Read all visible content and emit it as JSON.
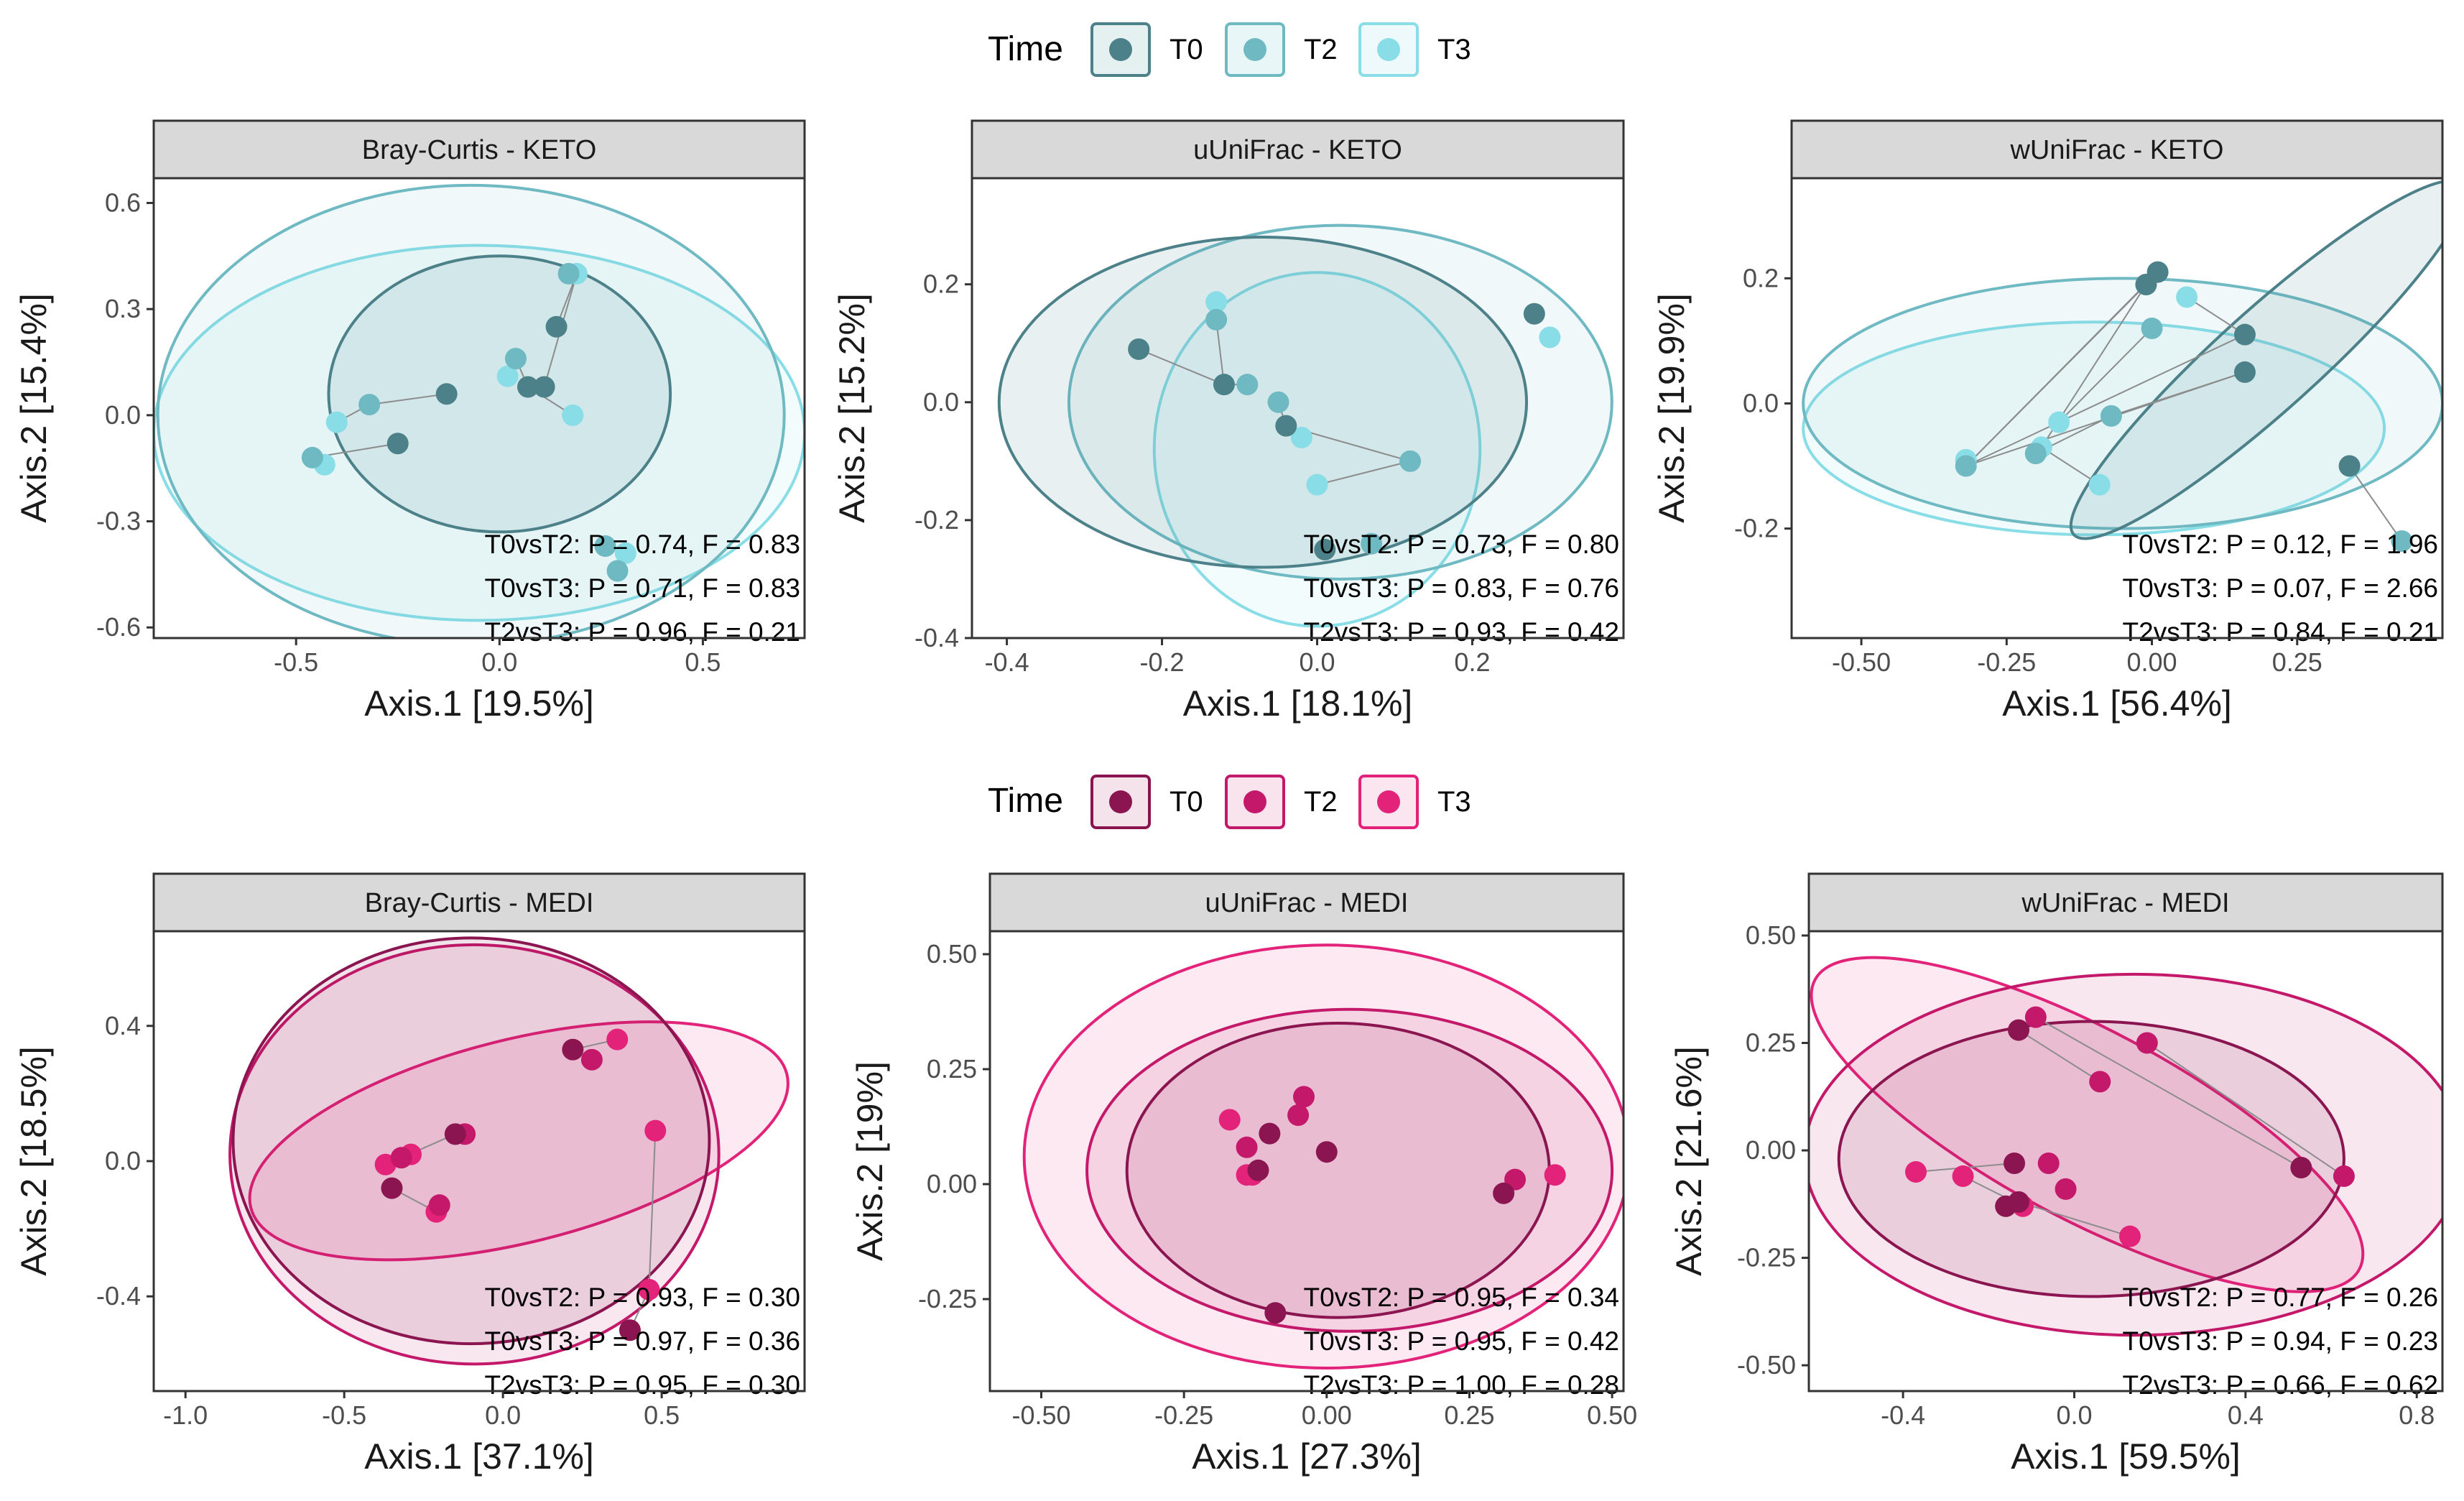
{
  "legends": [
    {
      "title": "Time",
      "items": [
        {
          "label": "T0",
          "color": "#4d8189"
        },
        {
          "label": "T2",
          "color": "#6fb9c3"
        },
        {
          "label": "T3",
          "color": "#88dde6"
        }
      ]
    },
    {
      "title": "Time",
      "items": [
        {
          "label": "T0",
          "color": "#8a1550"
        },
        {
          "label": "T2",
          "color": "#c4186a"
        },
        {
          "label": "T3",
          "color": "#e3237a"
        }
      ]
    }
  ],
  "chart_data": [
    {
      "type": "scatter",
      "title": "Bray-Curtis - KETO",
      "group": "KETO",
      "xlabel": "Axis.1   [19.5%]",
      "ylabel": "Axis.2   [15.4%]",
      "xlim": [
        -0.85,
        0.75
      ],
      "ylim": [
        -0.63,
        0.67
      ],
      "xticks": [
        -0.5,
        0.0,
        0.5
      ],
      "xtick_labels": [
        "-0.5",
        "0.0",
        "0.5"
      ],
      "yticks": [
        -0.6,
        -0.3,
        0.0,
        0.3,
        0.6
      ],
      "ytick_labels": [
        "-0.6",
        "-0.3",
        "0.0",
        "0.3",
        "0.6"
      ],
      "annotations": [
        "T0vsT2: P = 0.74, F = 0.83",
        "T0vsT3: P = 0.71, F = 0.83",
        "T2vsT3: P = 0.96, F = 0.21"
      ],
      "series": [
        {
          "name": "T0",
          "x": [
            -0.13,
            -0.25,
            0.14,
            0.07,
            0.11
          ],
          "y": [
            0.06,
            -0.08,
            0.25,
            0.08,
            0.08
          ]
        },
        {
          "name": "T2",
          "x": [
            -0.32,
            -0.46,
            0.04,
            0.17,
            0.26,
            0.29
          ],
          "y": [
            0.03,
            -0.12,
            0.16,
            0.4,
            -0.37,
            -0.44
          ]
        },
        {
          "name": "T3",
          "x": [
            -0.4,
            -0.43,
            0.02,
            0.18,
            0.19,
            0.31
          ],
          "y": [
            -0.02,
            -0.14,
            0.11,
            0.0,
            0.4,
            -0.39
          ]
        }
      ],
      "ellipses": [
        {
          "name": "T0",
          "cx": 0.0,
          "cy": 0.06,
          "rx": 0.42,
          "ry": 0.39
        },
        {
          "name": "T2",
          "cx": -0.07,
          "cy": 0.0,
          "rx": 0.77,
          "ry": 0.65
        },
        {
          "name": "T3",
          "cx": -0.05,
          "cy": -0.05,
          "rx": 0.8,
          "ry": 0.53
        }
      ],
      "links": [
        [
          -0.4,
          -0.02,
          -0.32,
          0.03
        ],
        [
          -0.32,
          0.03,
          -0.13,
          0.06
        ],
        [
          -0.46,
          -0.12,
          -0.25,
          -0.08
        ],
        [
          0.04,
          0.16,
          0.07,
          0.08
        ],
        [
          0.07,
          0.08,
          0.18,
          0.0
        ],
        [
          0.11,
          0.08,
          0.19,
          0.4
        ],
        [
          0.14,
          0.25,
          0.19,
          0.4
        ],
        [
          0.26,
          -0.37,
          0.31,
          -0.39
        ]
      ]
    },
    {
      "type": "scatter",
      "title": "uUniFrac - KETO",
      "group": "KETO",
      "xlabel": "Axis.1   [18.1%]",
      "ylabel": "Axis.2   [15.2%]",
      "xlim": [
        -0.445,
        0.395
      ],
      "ylim": [
        -0.4,
        0.38
      ],
      "xticks": [
        -0.4,
        -0.2,
        0.0,
        0.2
      ],
      "xtick_labels": [
        "-0.4",
        "-0.2",
        "0.0",
        "0.2"
      ],
      "yticks": [
        -0.4,
        -0.2,
        0.0,
        0.2
      ],
      "ytick_labels": [
        "-0.4",
        "-0.2",
        "0.0",
        "0.2"
      ],
      "annotations": [
        "T0vsT2: P = 0.73, F = 0.80",
        "T0vsT3: P = 0.83, F = 0.76",
        "T2vsT3: P = 0.93, F = 0.42"
      ],
      "series": [
        {
          "name": "T0",
          "x": [
            -0.23,
            -0.12,
            -0.04,
            0.28,
            0.01
          ],
          "y": [
            0.09,
            0.03,
            -0.04,
            0.15,
            -0.25
          ]
        },
        {
          "name": "T2",
          "x": [
            -0.13,
            -0.09,
            -0.05,
            0.12,
            0.07
          ],
          "y": [
            0.14,
            0.03,
            0.0,
            -0.1,
            -0.24
          ]
        },
        {
          "name": "T3",
          "x": [
            -0.13,
            -0.12,
            -0.02,
            0.0,
            0.3
          ],
          "y": [
            0.17,
            0.03,
            -0.06,
            -0.14,
            0.11
          ]
        }
      ],
      "ellipses": [
        {
          "name": "T0",
          "cx": -0.07,
          "cy": 0.0,
          "rx": 0.34,
          "ry": 0.28
        },
        {
          "name": "T2",
          "cx": 0.03,
          "cy": 0.0,
          "rx": 0.35,
          "ry": 0.3
        },
        {
          "name": "T3",
          "cx": 0.0,
          "cy": -0.08,
          "rx": 0.21,
          "ry": 0.3
        }
      ],
      "links": [
        [
          -0.23,
          0.09,
          -0.12,
          0.03
        ],
        [
          -0.12,
          0.03,
          -0.09,
          0.03
        ],
        [
          -0.05,
          0.0,
          -0.04,
          -0.04
        ],
        [
          -0.04,
          -0.04,
          -0.02,
          -0.06
        ],
        [
          -0.04,
          -0.04,
          0.12,
          -0.1
        ],
        [
          0.12,
          -0.1,
          0.0,
          -0.14
        ],
        [
          -0.13,
          0.14,
          -0.12,
          0.03
        ]
      ]
    },
    {
      "type": "scatter",
      "title": "wUniFrac - KETO",
      "group": "KETO",
      "xlabel": "Axis.1   [56.4%]",
      "ylabel": "Axis.2   [19.9%]",
      "xlim": [
        -0.62,
        0.5
      ],
      "ylim": [
        -0.375,
        0.36
      ],
      "xticks": [
        -0.5,
        -0.25,
        0.0,
        0.25
      ],
      "xtick_labels": [
        "-0.50",
        "-0.25",
        "0.00",
        "0.25"
      ],
      "yticks": [
        -0.2,
        0.0,
        0.2
      ],
      "ytick_labels": [
        "-0.2",
        "0.0",
        "0.2"
      ],
      "annotations": [
        "T0vsT2: P = 0.12, F = 1.96",
        "T0vsT3: P = 0.07, F = 2.66",
        "T2vsT3: P = 0.84, F = 0.21"
      ],
      "series": [
        {
          "name": "T0",
          "x": [
            -0.01,
            0.01,
            0.16,
            0.16,
            0.34
          ],
          "y": [
            0.19,
            0.21,
            0.11,
            0.05,
            -0.1
          ]
        },
        {
          "name": "T2",
          "x": [
            -0.32,
            -0.2,
            -0.07,
            0.0,
            0.43
          ],
          "y": [
            -0.1,
            -0.08,
            -0.02,
            0.12,
            -0.22
          ]
        },
        {
          "name": "T3",
          "x": [
            -0.32,
            -0.19,
            -0.16,
            -0.09,
            0.06,
            -0.01
          ],
          "y": [
            -0.09,
            -0.07,
            -0.03,
            -0.13,
            0.17,
            0.19
          ]
        }
      ],
      "ellipses": [
        {
          "name": "T0",
          "cx": 0.2,
          "cy": 0.07,
          "rx": 0.45,
          "ry": 0.08,
          "angle": 42
        },
        {
          "name": "T2",
          "cx": -0.05,
          "cy": 0.0,
          "rx": 0.55,
          "ry": 0.2
        },
        {
          "name": "T3",
          "cx": -0.1,
          "cy": -0.04,
          "rx": 0.5,
          "ry": 0.17
        }
      ],
      "links": [
        [
          -0.32,
          -0.1,
          -0.01,
          0.19
        ],
        [
          -0.32,
          -0.1,
          0.01,
          0.21
        ],
        [
          -0.32,
          -0.1,
          0.16,
          0.11
        ],
        [
          -0.32,
          -0.1,
          0.16,
          0.05
        ],
        [
          -0.2,
          -0.08,
          -0.07,
          -0.02
        ],
        [
          -0.07,
          -0.02,
          0.16,
          0.05
        ],
        [
          -0.09,
          -0.13,
          -0.19,
          -0.07
        ],
        [
          0.0,
          0.12,
          -0.16,
          -0.03
        ],
        [
          -0.01,
          0.19,
          -0.19,
          -0.07
        ],
        [
          0.34,
          -0.1,
          0.43,
          -0.22
        ],
        [
          0.06,
          0.17,
          0.16,
          0.11
        ]
      ]
    },
    {
      "type": "scatter",
      "title": "Bray-Curtis - MEDI",
      "group": "MEDI",
      "xlabel": "Axis.1   [37.1%]",
      "ylabel": "Axis.2   [18.5%]",
      "xlim": [
        -1.1,
        0.95
      ],
      "ylim": [
        -0.68,
        0.68
      ],
      "xticks": [
        -1.0,
        -0.5,
        0.0,
        0.5
      ],
      "xtick_labels": [
        "-1.0",
        "-0.5",
        "0.0",
        "0.5"
      ],
      "yticks": [
        -0.4,
        0.0,
        0.4
      ],
      "ytick_labels": [
        "-0.4",
        "0.0",
        "0.4"
      ],
      "annotations": [
        "T0vsT2: P = 0.93, F = 0.30",
        "T0vsT3: P = 0.97, F = 0.36",
        "T2vsT3: P = 0.95, F = 0.30"
      ],
      "series": [
        {
          "name": "T0",
          "x": [
            -0.35,
            -0.15,
            0.22,
            0.4
          ],
          "y": [
            -0.08,
            0.08,
            0.33,
            -0.5
          ]
        },
        {
          "name": "T2",
          "x": [
            -0.32,
            -0.2,
            -0.12,
            0.28
          ],
          "y": [
            0.01,
            -0.13,
            0.08,
            0.3
          ]
        },
        {
          "name": "T3",
          "x": [
            -0.37,
            -0.29,
            -0.21,
            0.36,
            0.48,
            0.46
          ],
          "y": [
            -0.01,
            0.02,
            -0.15,
            0.36,
            0.09,
            -0.38
          ]
        }
      ],
      "ellipses": [
        {
          "name": "T0",
          "cx": -0.1,
          "cy": 0.06,
          "rx": 0.75,
          "ry": 0.6
        },
        {
          "name": "T2",
          "cx": -0.09,
          "cy": 0.02,
          "rx": 0.77,
          "ry": 0.62
        },
        {
          "name": "T3",
          "cx": 0.05,
          "cy": 0.06,
          "rx": 0.87,
          "ry": 0.3,
          "angle": 14
        }
      ],
      "links": [
        [
          -0.35,
          -0.08,
          -0.21,
          -0.15
        ],
        [
          -0.32,
          0.01,
          -0.15,
          0.08
        ],
        [
          0.22,
          0.33,
          0.36,
          0.36
        ],
        [
          0.48,
          0.09,
          0.46,
          -0.38
        ],
        [
          0.46,
          -0.38,
          0.4,
          -0.5
        ]
      ]
    },
    {
      "type": "scatter",
      "title": "uUniFrac - MEDI",
      "group": "MEDI",
      "xlabel": "Axis.1   [27.3%]",
      "ylabel": "Axis.2   [19%]",
      "xlim": [
        -0.59,
        0.52
      ],
      "ylim": [
        -0.45,
        0.55
      ],
      "xticks": [
        -0.5,
        -0.25,
        0.0,
        0.25,
        0.5
      ],
      "xtick_labels": [
        "-0.50",
        "-0.25",
        "0.00",
        "0.25",
        "0.50"
      ],
      "yticks": [
        -0.25,
        0.0,
        0.25,
        0.5
      ],
      "ytick_labels": [
        "-0.25",
        "0.00",
        "0.25",
        "0.50"
      ],
      "annotations": [
        "T0vsT2: P = 0.95, F = 0.34",
        "T0vsT3: P = 0.95, F = 0.42",
        "T2vsT3: P = 1.00, F = 0.28"
      ],
      "series": [
        {
          "name": "T0",
          "x": [
            -0.1,
            -0.12,
            0.0,
            0.31,
            -0.09
          ],
          "y": [
            0.11,
            0.03,
            0.07,
            -0.02,
            -0.28
          ]
        },
        {
          "name": "T2",
          "x": [
            -0.14,
            -0.05,
            -0.04,
            0.33
          ],
          "y": [
            0.08,
            0.15,
            0.19,
            0.01
          ]
        },
        {
          "name": "T3",
          "x": [
            -0.17,
            -0.14,
            -0.13,
            0.4
          ],
          "y": [
            0.14,
            0.02,
            0.02,
            0.02
          ]
        }
      ],
      "ellipses": [
        {
          "name": "T0",
          "cx": 0.02,
          "cy": 0.03,
          "rx": 0.37,
          "ry": 0.32
        },
        {
          "name": "T2",
          "cx": 0.04,
          "cy": 0.03,
          "rx": 0.46,
          "ry": 0.35
        },
        {
          "name": "T3",
          "cx": 0.0,
          "cy": 0.06,
          "rx": 0.53,
          "ry": 0.46
        }
      ],
      "links": []
    },
    {
      "type": "scatter",
      "title": "wUniFrac - MEDI",
      "group": "MEDI",
      "xlabel": "Axis.1   [59.5%]",
      "ylabel": "Axis.2   [21.6%]",
      "xlim": [
        -0.62,
        0.86
      ],
      "ylim": [
        -0.56,
        0.51
      ],
      "xticks": [
        -0.4,
        0.0,
        0.4,
        0.8
      ],
      "xtick_labels": [
        "-0.4",
        "0.0",
        "0.4",
        "0.8"
      ],
      "yticks": [
        -0.5,
        -0.25,
        0.0,
        0.25,
        0.5
      ],
      "ytick_labels": [
        "-0.50",
        "-0.25",
        "0.00",
        "0.25",
        "0.50"
      ],
      "annotations": [
        "T0vsT2: P = 0.77, F = 0.26",
        "T0vsT3: P = 0.94, F = 0.23",
        "T2vsT3: P = 0.66, F = 0.62"
      ],
      "series": [
        {
          "name": "T0",
          "x": [
            -0.13,
            -0.14,
            -0.13,
            -0.16,
            0.53
          ],
          "y": [
            0.28,
            -0.03,
            -0.12,
            -0.13,
            -0.04
          ]
        },
        {
          "name": "T2",
          "x": [
            -0.09,
            -0.06,
            -0.02,
            0.06,
            0.17,
            0.63
          ],
          "y": [
            0.31,
            -0.03,
            -0.09,
            0.16,
            0.25,
            -0.06
          ]
        },
        {
          "name": "T3",
          "x": [
            -0.37,
            -0.26,
            -0.12,
            0.13
          ],
          "y": [
            -0.05,
            -0.06,
            -0.13,
            -0.2
          ]
        }
      ],
      "ellipses": [
        {
          "name": "T0",
          "cx": 0.04,
          "cy": -0.02,
          "rx": 0.59,
          "ry": 0.32
        },
        {
          "name": "T2",
          "cx": 0.14,
          "cy": -0.01,
          "rx": 0.77,
          "ry": 0.42
        },
        {
          "name": "T3",
          "cx": 0.03,
          "cy": 0.06,
          "rx": 0.72,
          "ry": 0.22,
          "angle": -28
        }
      ],
      "links": [
        [
          -0.13,
          0.28,
          0.06,
          0.16
        ],
        [
          -0.09,
          0.31,
          0.53,
          -0.04
        ],
        [
          0.17,
          0.25,
          0.63,
          -0.06
        ],
        [
          -0.37,
          -0.05,
          -0.14,
          -0.03
        ],
        [
          -0.26,
          -0.06,
          -0.12,
          -0.13
        ],
        [
          -0.13,
          -0.12,
          0.13,
          -0.2
        ]
      ]
    }
  ]
}
